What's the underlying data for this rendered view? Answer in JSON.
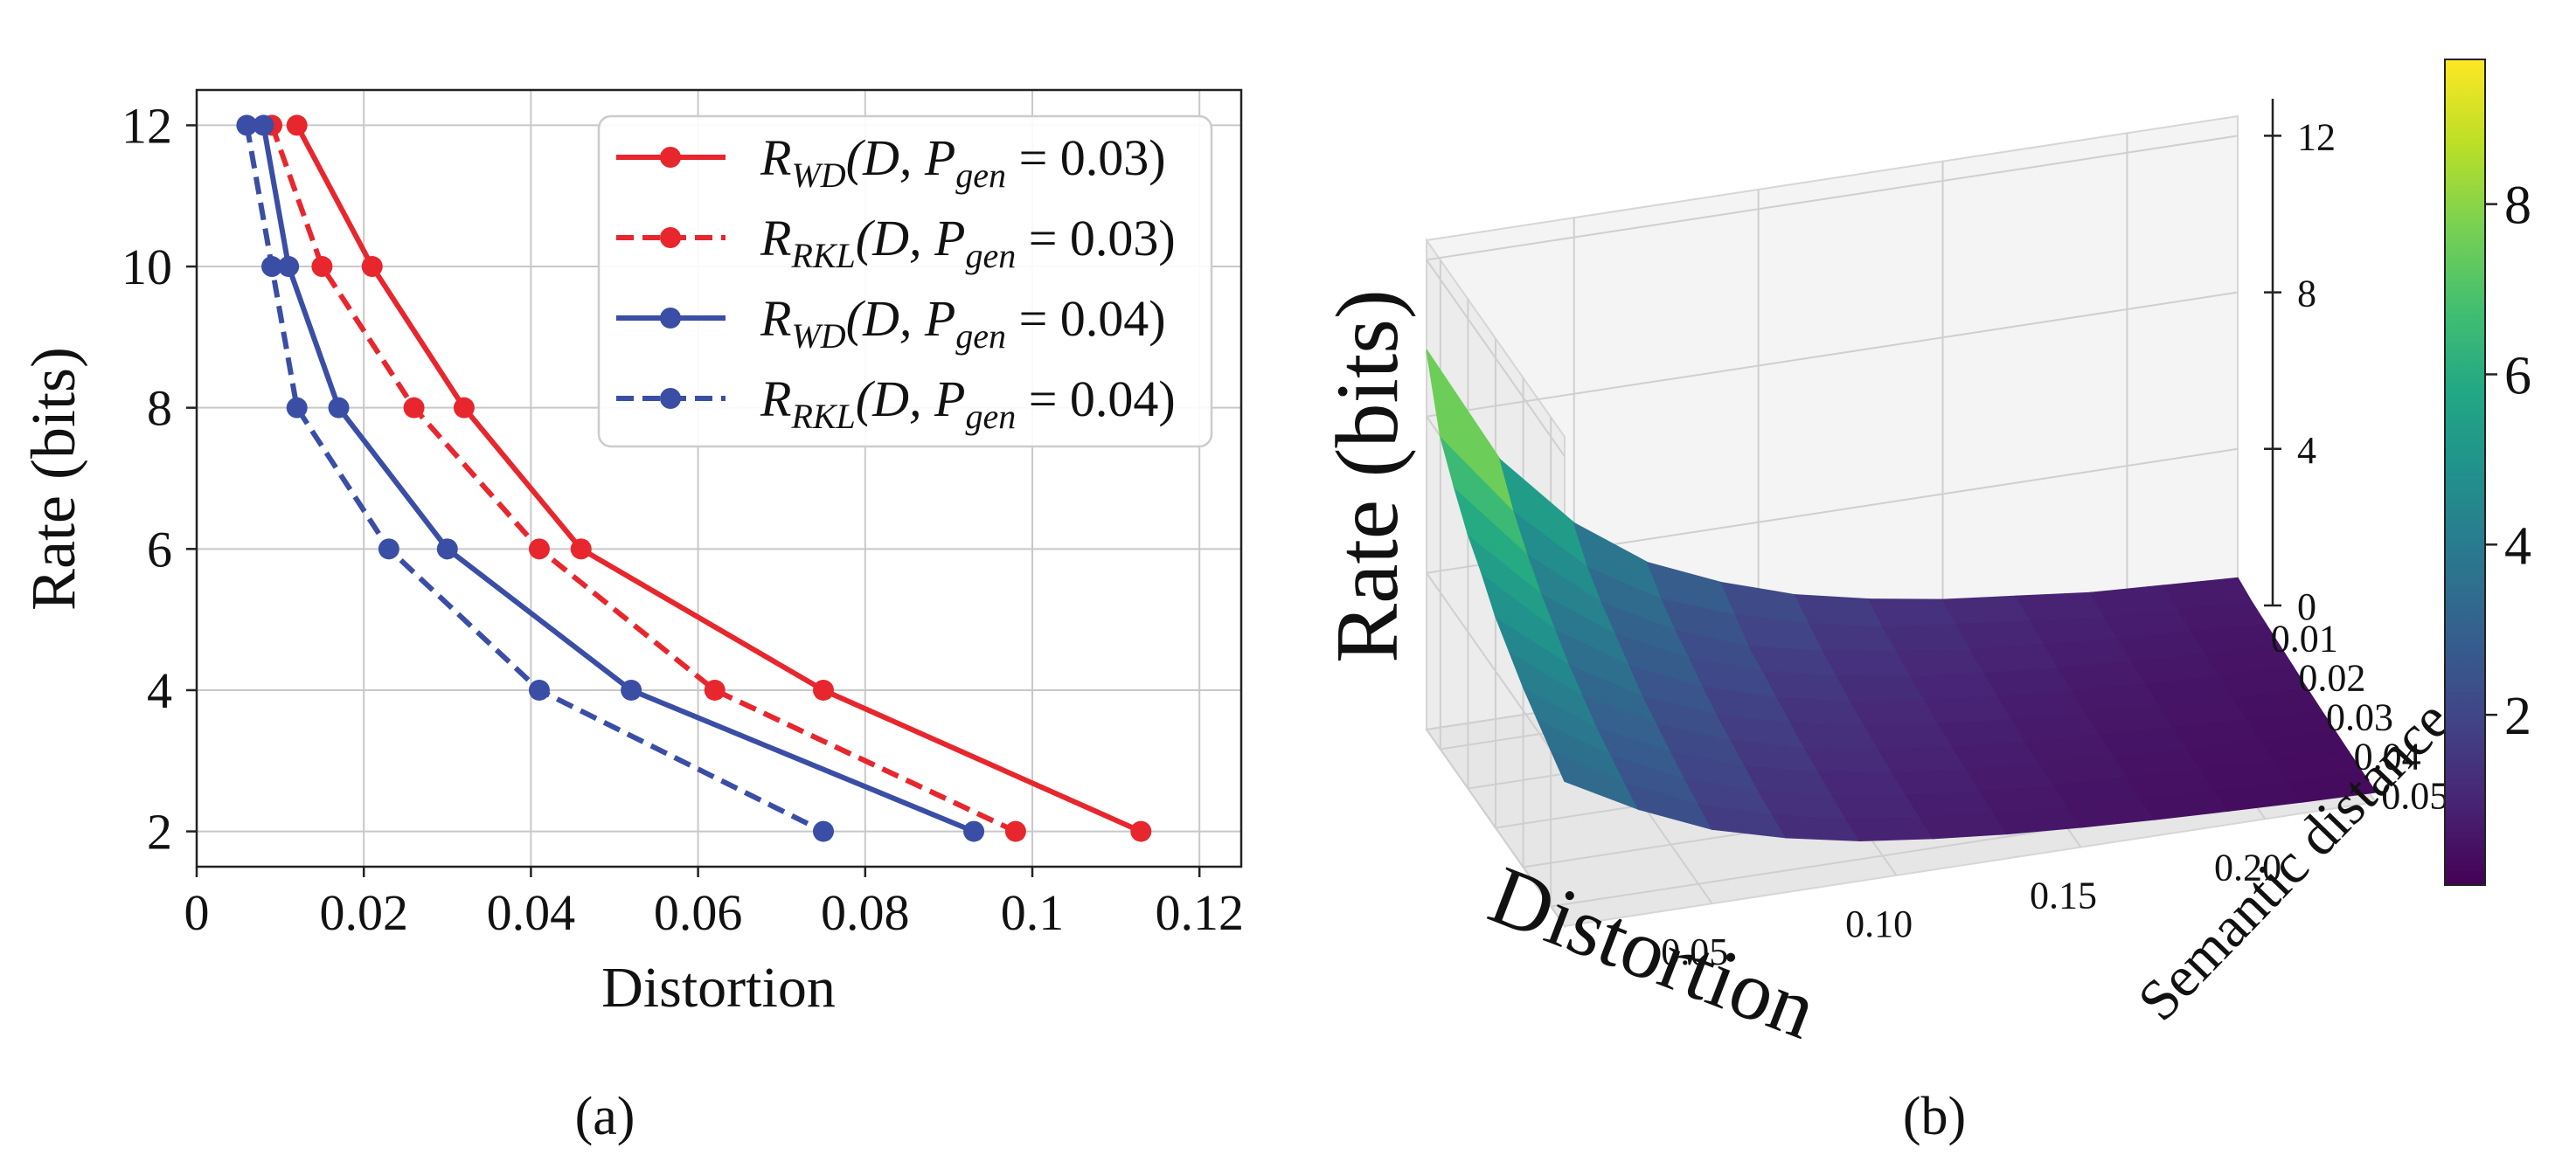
{
  "panels": {
    "a_label": "(a)",
    "b_label": "(b)"
  },
  "chart_data": [
    {
      "type": "line",
      "xlabel": "Distortion",
      "ylabel": "Rate (bits)",
      "xlim": [
        0,
        0.125
      ],
      "ylim": [
        1.5,
        12.5
      ],
      "x_ticks": [
        0,
        0.02,
        0.04,
        0.06,
        0.08,
        0.1,
        0.12
      ],
      "x_tick_labels": [
        "0",
        "0.02",
        "0.04",
        "0.06",
        "0.08",
        "0.1",
        "0.12"
      ],
      "y_ticks": [
        2,
        4,
        6,
        8,
        10,
        12
      ],
      "y_tick_labels": [
        "2",
        "4",
        "6",
        "8",
        "10",
        "12"
      ],
      "grid": true,
      "legend_position": "top-right",
      "series": [
        {
          "name": "R_WD(D, P_gen = 0.03)",
          "legend_main": "R",
          "legend_sub": "WD",
          "legend_mid": "(D, P",
          "legend_sub2": "gen",
          "legend_end": " = 0.03)",
          "color": "#e8262d",
          "dash": "solid",
          "x": [
            0.012,
            0.021,
            0.032,
            0.046,
            0.075,
            0.113
          ],
          "y": [
            12,
            10,
            8,
            6,
            4,
            2
          ]
        },
        {
          "name": "R_RKL(D, P_gen = 0.03)",
          "legend_main": "R",
          "legend_sub": "RKL",
          "legend_mid": "(D, P",
          "legend_sub2": "gen",
          "legend_end": " = 0.03)",
          "color": "#e8262d",
          "dash": "dashed",
          "x": [
            0.009,
            0.015,
            0.026,
            0.041,
            0.062,
            0.098
          ],
          "y": [
            12,
            10,
            8,
            6,
            4,
            2
          ]
        },
        {
          "name": "R_WD(D, P_gen = 0.04)",
          "legend_main": "R",
          "legend_sub": "WD",
          "legend_mid": "(D, P",
          "legend_sub2": "gen",
          "legend_end": " = 0.04)",
          "color": "#3a4ea5",
          "dash": "solid",
          "x": [
            0.008,
            0.011,
            0.017,
            0.03,
            0.052,
            0.093
          ],
          "y": [
            12,
            10,
            8,
            6,
            4,
            2
          ]
        },
        {
          "name": "R_RKL(D, P_gen = 0.04)",
          "legend_main": "R",
          "legend_sub": "RKL",
          "legend_mid": "(D, P",
          "legend_sub2": "gen",
          "legend_end": " = 0.04)",
          "color": "#3a4ea5",
          "dash": "dashed",
          "x": [
            0.006,
            0.009,
            0.012,
            0.023,
            0.041,
            0.075
          ],
          "y": [
            12,
            10,
            8,
            6,
            4,
            2
          ]
        }
      ]
    },
    {
      "type": "surface",
      "xlabel": "Distortion",
      "ylabel": "Semantic distance",
      "zlabel": "Rate (bits)",
      "x_ticks": [
        0.05,
        0.1,
        0.15,
        0.2
      ],
      "x_tick_labels": [
        "0.05",
        "0.10",
        "0.15",
        "0.20"
      ],
      "y_ticks": [
        0.01,
        0.02,
        0.03,
        0.04,
        0.05
      ],
      "y_tick_labels": [
        "0.01",
        "0.02",
        "0.03",
        "0.04",
        "0.05"
      ],
      "z_ticks": [
        0,
        4,
        8,
        12
      ],
      "z_tick_labels": [
        "0",
        "4",
        "8",
        "12"
      ],
      "xlim": [
        0.01,
        0.23
      ],
      "ylim": [
        0.005,
        0.055
      ],
      "zlim": [
        0,
        12.5
      ],
      "colormap": "viridis",
      "colorbar_ticks": [
        2,
        4,
        6,
        8
      ],
      "colorbar_tick_labels": [
        "2",
        "4",
        "6",
        "8"
      ],
      "colorbar_range": [
        0,
        9.7
      ],
      "grid_x": [
        0.01,
        0.03,
        0.05,
        0.07,
        0.09,
        0.11,
        0.13,
        0.15,
        0.17,
        0.19,
        0.21,
        0.23
      ],
      "grid_y": [
        0.005,
        0.01,
        0.015,
        0.02,
        0.025,
        0.03,
        0.035,
        0.04,
        0.045,
        0.05,
        0.055
      ],
      "z_rows": [
        [
          9.7,
          6.6,
          4.7,
          3.4,
          2.6,
          2.0,
          1.6,
          1.3,
          1.1,
          0.9,
          0.8,
          0.7
        ],
        [
          8.0,
          5.8,
          4.1,
          3.0,
          2.3,
          1.8,
          1.4,
          1.2,
          1.0,
          0.8,
          0.7,
          0.6
        ],
        [
          7.2,
          5.2,
          3.7,
          2.7,
          2.0,
          1.6,
          1.3,
          1.05,
          0.9,
          0.75,
          0.65,
          0.55
        ],
        [
          6.5,
          4.7,
          3.4,
          2.5,
          1.85,
          1.45,
          1.15,
          0.95,
          0.8,
          0.67,
          0.57,
          0.5
        ],
        [
          6.0,
          4.3,
          3.1,
          2.25,
          1.7,
          1.3,
          1.05,
          0.85,
          0.72,
          0.6,
          0.52,
          0.45
        ],
        [
          5.4,
          3.9,
          2.8,
          2.05,
          1.55,
          1.2,
          0.95,
          0.78,
          0.65,
          0.55,
          0.47,
          0.4
        ],
        [
          5.0,
          3.6,
          2.6,
          1.9,
          1.4,
          1.1,
          0.87,
          0.7,
          0.59,
          0.5,
          0.42,
          0.36
        ],
        [
          4.6,
          3.3,
          2.4,
          1.75,
          1.3,
          1.0,
          0.8,
          0.65,
          0.54,
          0.45,
          0.38,
          0.33
        ],
        [
          4.3,
          3.1,
          2.2,
          1.6,
          1.2,
          0.92,
          0.73,
          0.6,
          0.5,
          0.42,
          0.35,
          0.3
        ],
        [
          4.0,
          2.9,
          2.05,
          1.5,
          1.1,
          0.85,
          0.68,
          0.55,
          0.46,
          0.38,
          0.32,
          0.27
        ],
        [
          3.7,
          2.7,
          1.9,
          1.4,
          1.03,
          0.8,
          0.63,
          0.51,
          0.42,
          0.35,
          0.29,
          0.25
        ]
      ]
    }
  ]
}
